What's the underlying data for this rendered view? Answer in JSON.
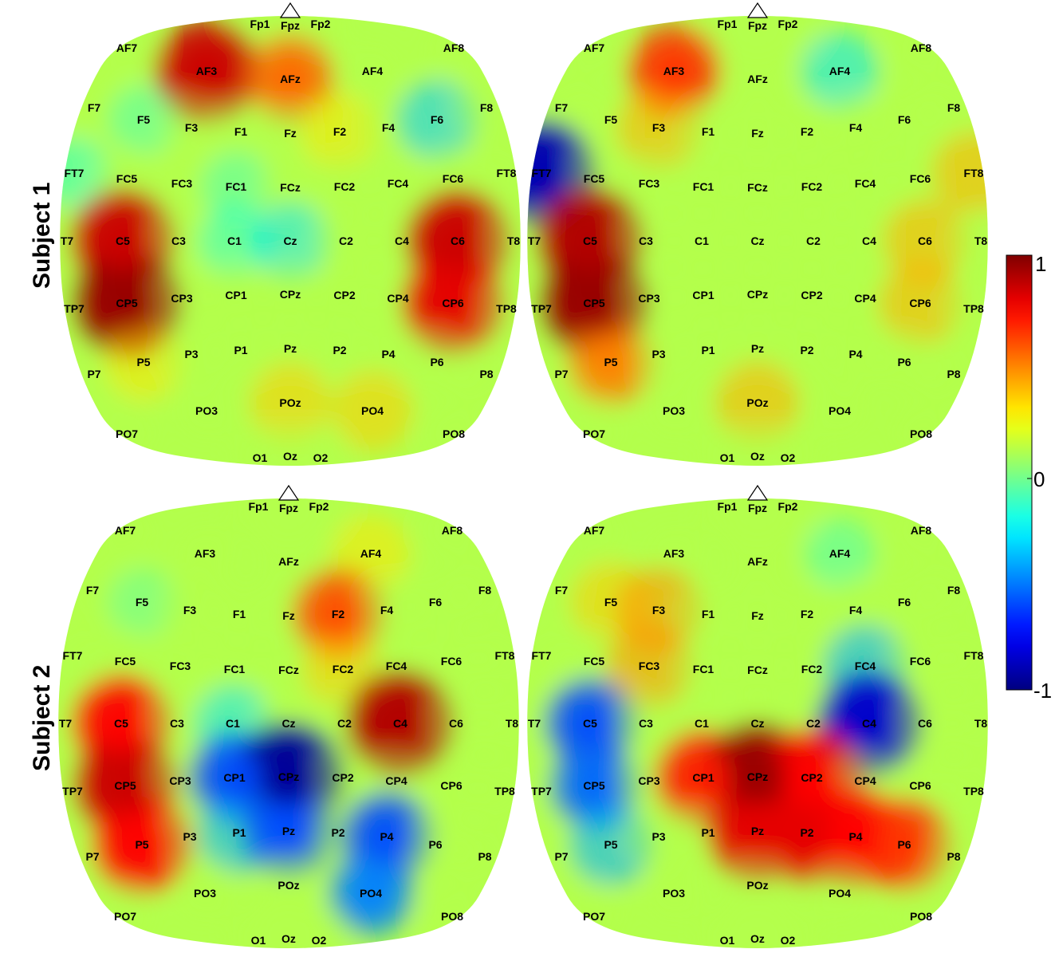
{
  "row_labels": [
    "Subject 1",
    "Subject 2"
  ],
  "colorbar": {
    "max_label": "1",
    "mid_label": "0",
    "min_label": "-1"
  },
  "chart_data": {
    "type": "heatmap",
    "description_scale": {
      "min": -1,
      "max": 1,
      "colormap": "jet"
    },
    "electrodes": [
      "Fp1",
      "Fpz",
      "Fp2",
      "AF7",
      "AF3",
      "AFz",
      "AF4",
      "AF8",
      "F7",
      "F5",
      "F3",
      "F1",
      "Fz",
      "F2",
      "F4",
      "F6",
      "F8",
      "FT7",
      "FC5",
      "FC3",
      "FC1",
      "FCz",
      "FC2",
      "FC4",
      "FC6",
      "FT8",
      "T7",
      "C5",
      "C3",
      "C1",
      "Cz",
      "C2",
      "C4",
      "C6",
      "T8",
      "TP7",
      "CP5",
      "CP3",
      "CP1",
      "CPz",
      "CP2",
      "CP4",
      "CP6",
      "TP8",
      "P7",
      "P5",
      "P3",
      "P1",
      "Pz",
      "P2",
      "P4",
      "P6",
      "P8",
      "PO7",
      "PO3",
      "POz",
      "PO4",
      "PO8",
      "O1",
      "Oz",
      "O2"
    ],
    "maps": [
      {
        "subject": "Subject 1",
        "column": 1,
        "values": {
          "AF3": 0.85,
          "AFz": 0.55,
          "F6": -0.35,
          "F5": -0.15,
          "FT7": -0.2,
          "C5": 0.85,
          "CP5": 0.95,
          "C6": 0.85,
          "CP6": 0.8,
          "Cz": -0.3,
          "C1": -0.2,
          "FC1": -0.15,
          "POz": 0.35,
          "PO4": 0.35,
          "F2": 0.3,
          "P5": 0.3
        }
      },
      {
        "subject": "Subject 1",
        "column": 2,
        "values": {
          "AF3": 0.65,
          "AF4": -0.3,
          "FT7": -0.9,
          "C5": 0.9,
          "CP5": 0.95,
          "P5": 0.5,
          "C6": 0.4,
          "CP6": 0.4,
          "POz": 0.4,
          "FT8": 0.4,
          "F3": 0.4
        }
      },
      {
        "subject": "Subject 2",
        "column": 1,
        "values": {
          "C5": 0.75,
          "CP5": 0.85,
          "P5": 0.75,
          "C4": 0.9,
          "F2": 0.6,
          "FC2": 0.35,
          "CPz": -0.95,
          "CP1": -0.6,
          "Pz": -0.6,
          "P4": -0.6,
          "PO4": -0.5,
          "C1": -0.3,
          "P1": -0.4,
          "F5": -0.1,
          "AF4": 0.3
        }
      },
      {
        "subject": "Subject 2",
        "column": 2,
        "values": {
          "C5": -0.6,
          "CP5": -0.55,
          "P5": -0.4,
          "C4": -0.85,
          "FC4": -0.4,
          "CPz": 0.95,
          "CP1": 0.7,
          "CP2": 0.75,
          "Pz": 0.8,
          "P2": 0.8,
          "P4": 0.75,
          "P6": 0.65,
          "F3": 0.45,
          "FC3": 0.45,
          "F5": 0.35,
          "AF4": -0.15
        }
      }
    ]
  }
}
